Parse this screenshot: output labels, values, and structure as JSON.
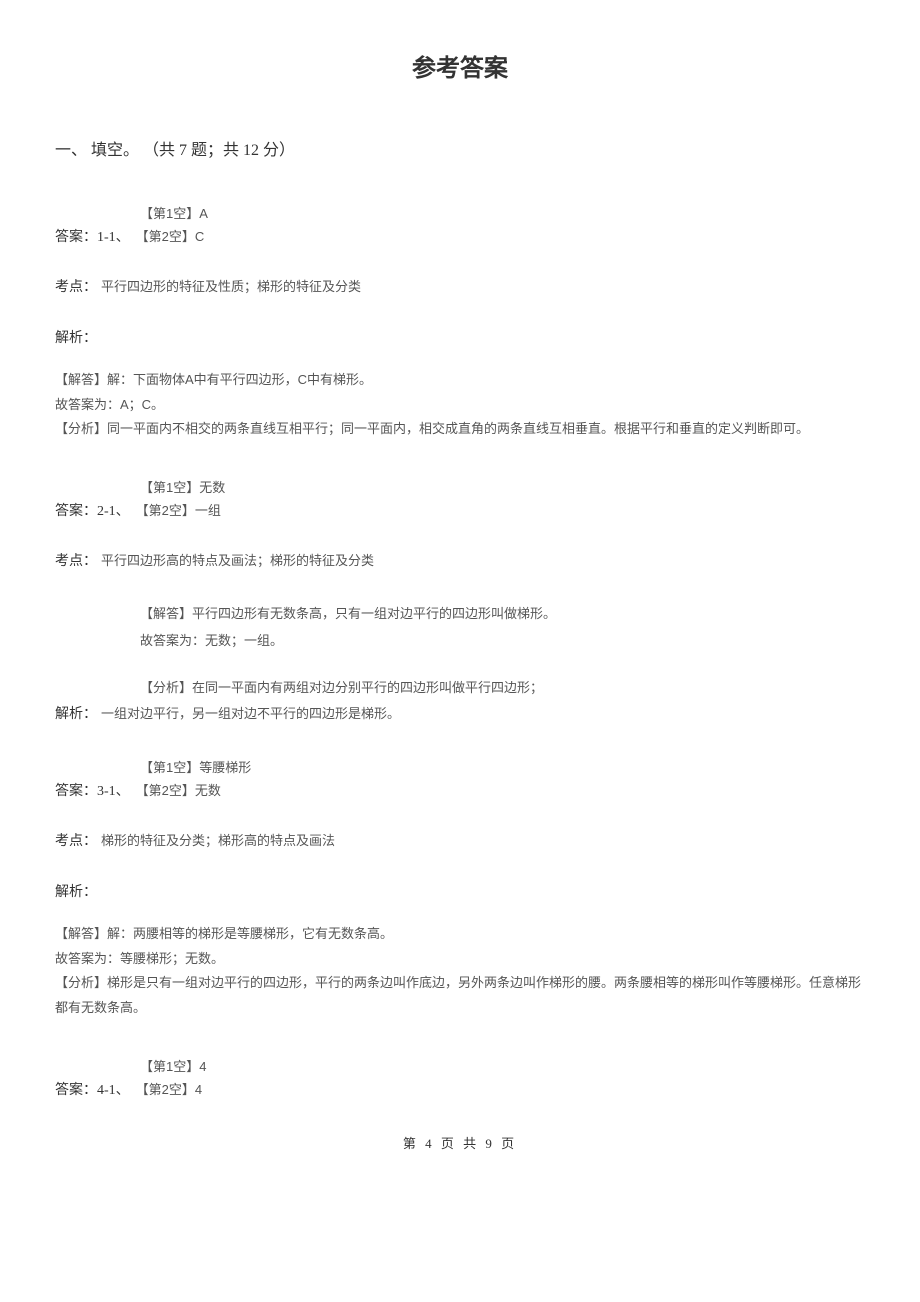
{
  "title": "参考答案",
  "section_header": "一、 填空。 （共 7 题；共 12 分）",
  "q1": {
    "blank1": "【第1空】A",
    "answer_label": "答案：1-1、",
    "blank2": "【第2空】C",
    "kp_label": "考点：",
    "kp_content": "平行四边形的特征及性质；梯形的特征及分类",
    "analysis_label": "解析：",
    "ans_line1": "【解答】解：下面物体A中有平行四边形，C中有梯形。",
    "ans_line2": "故答案为：A；C。",
    "ans_line3": "【分析】同一平面内不相交的两条直线互相平行；同一平面内，相交成直角的两条直线互相垂直。根据平行和垂直的定义判断即可。"
  },
  "q2": {
    "blank1": "【第1空】无数",
    "answer_label": "答案：2-1、",
    "blank2": "【第2空】一组",
    "kp_label": "考点：",
    "kp_content": "平行四边形高的特点及画法；梯形的特征及分类",
    "a_line1": "【解答】平行四边形有无数条高，只有一组对边平行的四边形叫做梯形。",
    "a_line2": "故答案为：无数；一组。",
    "a_line3": "【分析】在同一平面内有两组对边分别平行的四边形叫做平行四边形；",
    "analysis_label": "解析：",
    "a_line4": "一组对边平行，另一组对边不平行的四边形是梯形。"
  },
  "q3": {
    "blank1": "【第1空】等腰梯形",
    "answer_label": "答案：3-1、",
    "blank2": "【第2空】无数",
    "kp_label": "考点：",
    "kp_content": "梯形的特征及分类；梯形高的特点及画法",
    "analysis_label": "解析：",
    "ans_line1": "【解答】解：两腰相等的梯形是等腰梯形，它有无数条高。",
    "ans_line2": "故答案为：等腰梯形；无数。",
    "ans_line3": "【分析】梯形是只有一组对边平行的四边形，平行的两条边叫作底边，另外两条边叫作梯形的腰。两条腰相等的梯形叫作等腰梯形。任意梯形都有无数条高。"
  },
  "q4": {
    "blank1": "【第1空】4",
    "answer_label": "答案：4-1、",
    "blank2": "【第2空】4"
  },
  "footer": "第 4 页 共 9 页"
}
